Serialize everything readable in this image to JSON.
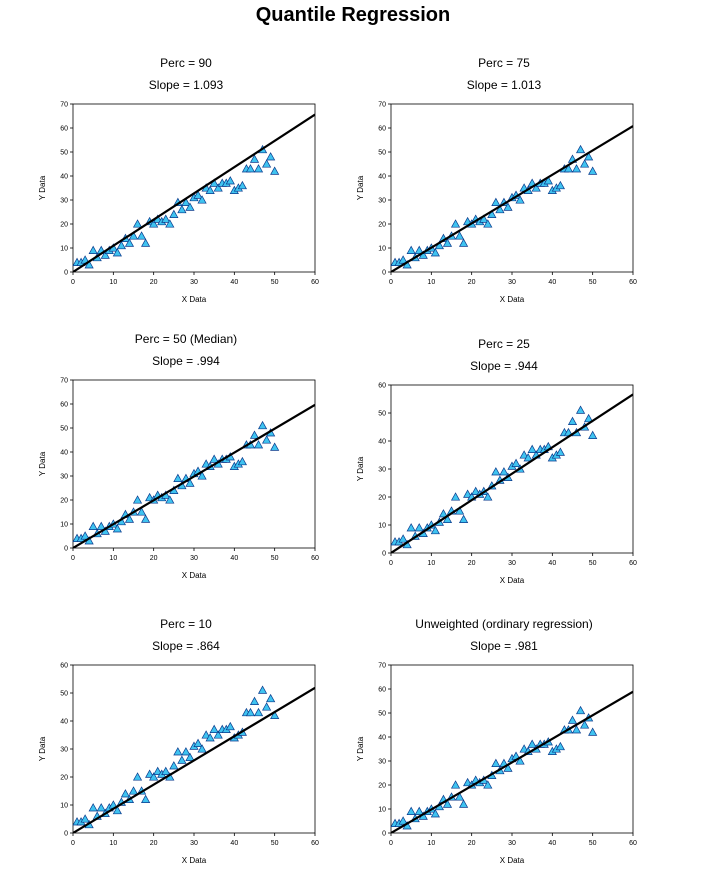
{
  "page": {
    "title": "Quantile Regression"
  },
  "shared_points": {
    "x": [
      1,
      2,
      3,
      4,
      5,
      6,
      7,
      8,
      9,
      10,
      11,
      12,
      13,
      14,
      15,
      16,
      17,
      18,
      19,
      20,
      21,
      22,
      23,
      24,
      25,
      26,
      27,
      28,
      29,
      30,
      31,
      32,
      33,
      34,
      35,
      36,
      37,
      38,
      39,
      40,
      41,
      42,
      43,
      44,
      45,
      46,
      47,
      48,
      49,
      50
    ],
    "y": [
      4,
      4,
      5,
      3,
      9,
      6,
      9,
      7,
      9,
      10,
      8,
      11,
      14,
      12,
      15,
      20,
      15,
      12,
      21,
      20,
      22,
      21,
      22,
      20,
      24,
      29,
      26,
      29,
      27,
      31,
      32,
      30,
      35,
      34,
      37,
      35,
      37,
      37,
      38,
      34,
      35,
      36,
      43,
      43,
      47,
      43,
      51,
      45,
      48,
      42
    ]
  },
  "chart_data": [
    {
      "type": "scatter",
      "title": "Perc = 90",
      "subtitle": "Slope = 1.093",
      "slope": 1.093,
      "xlabel": "X Data",
      "ylabel": "Y Data",
      "xlim": [
        0,
        60
      ],
      "ylim": [
        0,
        70
      ],
      "xticks": [
        0,
        10,
        20,
        30,
        40,
        50,
        60
      ],
      "yticks": [
        0,
        10,
        20,
        30,
        40,
        50,
        60,
        70
      ]
    },
    {
      "type": "scatter",
      "title": "Perc = 75",
      "subtitle": "Slope = 1.013",
      "slope": 1.013,
      "xlabel": "X Data",
      "ylabel": "Y Data",
      "xlim": [
        0,
        60
      ],
      "ylim": [
        0,
        70
      ],
      "xticks": [
        0,
        10,
        20,
        30,
        40,
        50,
        60
      ],
      "yticks": [
        0,
        10,
        20,
        30,
        40,
        50,
        60,
        70
      ]
    },
    {
      "type": "scatter",
      "title": "Perc = 50 (Median)",
      "subtitle": "Slope = .994",
      "slope": 0.994,
      "xlabel": "X Data",
      "ylabel": "Y Data",
      "xlim": [
        0,
        60
      ],
      "ylim": [
        0,
        70
      ],
      "xticks": [
        0,
        10,
        20,
        30,
        40,
        50,
        60
      ],
      "yticks": [
        0,
        10,
        20,
        30,
        40,
        50,
        60,
        70
      ]
    },
    {
      "type": "scatter",
      "title": "Perc = 25",
      "subtitle": "Slope = .944",
      "slope": 0.944,
      "xlabel": "X Data",
      "ylabel": "Y Data",
      "xlim": [
        0,
        60
      ],
      "ylim": [
        0,
        60
      ],
      "xticks": [
        0,
        10,
        20,
        30,
        40,
        50,
        60
      ],
      "yticks": [
        0,
        10,
        20,
        30,
        40,
        50,
        60
      ]
    },
    {
      "type": "scatter",
      "title": "Perc = 10",
      "subtitle": "Slope = .864",
      "slope": 0.864,
      "xlabel": "X Data",
      "ylabel": "Y Data",
      "xlim": [
        0,
        60
      ],
      "ylim": [
        0,
        60
      ],
      "xticks": [
        0,
        10,
        20,
        30,
        40,
        50,
        60
      ],
      "yticks": [
        0,
        10,
        20,
        30,
        40,
        50,
        60
      ]
    },
    {
      "type": "scatter",
      "title": "Unweighted (ordinary regression)",
      "subtitle": "Slope = .981",
      "slope": 0.981,
      "xlabel": "X Data",
      "ylabel": "Y Data",
      "xlim": [
        0,
        60
      ],
      "ylim": [
        0,
        70
      ],
      "xticks": [
        0,
        10,
        20,
        30,
        40,
        50,
        60
      ],
      "yticks": [
        0,
        10,
        20,
        30,
        40,
        50,
        60,
        70
      ]
    }
  ],
  "colors": {
    "marker_fill": "#3fc3f0",
    "marker_stroke": "#0a3a8c",
    "line": "#000000",
    "axis": "#000000"
  }
}
